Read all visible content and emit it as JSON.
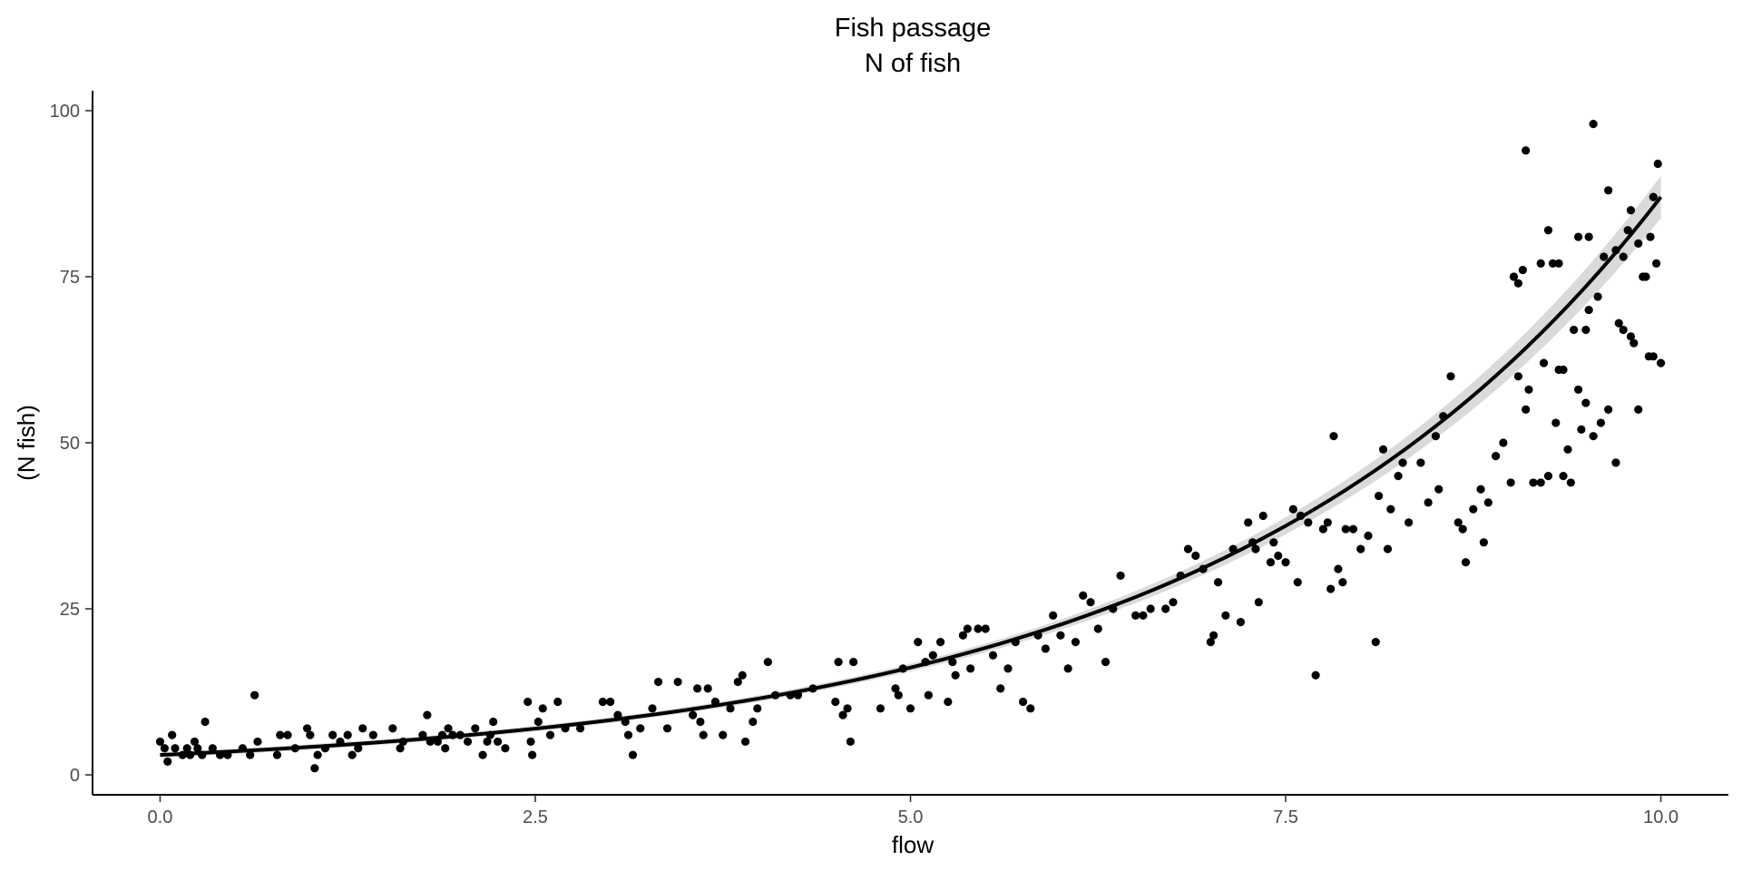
{
  "chart_data": {
    "type": "scatter",
    "title": "Fish passage",
    "subtitle": "N of fish",
    "xlabel": "flow",
    "ylabel": "(N fish)",
    "xlim": [
      -0.45,
      10.45
    ],
    "ylim": [
      -3,
      103
    ],
    "x_ticks": [
      0,
      2.5,
      5,
      7.5,
      10
    ],
    "x_tick_labels": [
      "0.0",
      "2.5",
      "5.0",
      "7.5",
      "10.0"
    ],
    "y_ticks": [
      0,
      25,
      50,
      75,
      100
    ],
    "y_tick_labels": [
      "0",
      "25",
      "50",
      "75",
      "100"
    ],
    "grid": false,
    "point_color": "#000000",
    "fit_line_color": "#000000",
    "ribbon_color": "#d3d3d3",
    "points": [
      [
        0.0,
        5
      ],
      [
        0.03,
        4
      ],
      [
        0.05,
        2
      ],
      [
        0.08,
        6
      ],
      [
        0.1,
        4
      ],
      [
        0.15,
        3
      ],
      [
        0.18,
        4
      ],
      [
        0.2,
        3
      ],
      [
        0.23,
        5
      ],
      [
        0.25,
        4
      ],
      [
        0.28,
        3
      ],
      [
        0.3,
        8
      ],
      [
        0.35,
        4
      ],
      [
        0.4,
        3
      ],
      [
        0.45,
        3
      ],
      [
        0.55,
        4
      ],
      [
        0.6,
        3
      ],
      [
        0.63,
        12
      ],
      [
        0.65,
        5
      ],
      [
        0.78,
        3
      ],
      [
        0.8,
        6
      ],
      [
        0.85,
        6
      ],
      [
        0.9,
        4
      ],
      [
        0.98,
        7
      ],
      [
        1.0,
        6
      ],
      [
        1.03,
        1
      ],
      [
        1.05,
        3
      ],
      [
        1.1,
        4
      ],
      [
        1.15,
        6
      ],
      [
        1.2,
        5
      ],
      [
        1.25,
        6
      ],
      [
        1.28,
        3
      ],
      [
        1.32,
        4
      ],
      [
        1.35,
        7
      ],
      [
        1.42,
        6
      ],
      [
        1.55,
        7
      ],
      [
        1.6,
        4
      ],
      [
        1.62,
        5
      ],
      [
        1.75,
        6
      ],
      [
        1.78,
        9
      ],
      [
        1.8,
        5
      ],
      [
        1.85,
        5
      ],
      [
        1.88,
        6
      ],
      [
        1.9,
        4
      ],
      [
        1.92,
        7
      ],
      [
        1.95,
        6
      ],
      [
        2.0,
        6
      ],
      [
        2.05,
        5
      ],
      [
        2.1,
        7
      ],
      [
        2.15,
        3
      ],
      [
        2.18,
        5
      ],
      [
        2.2,
        6
      ],
      [
        2.22,
        8
      ],
      [
        2.25,
        5
      ],
      [
        2.3,
        4
      ],
      [
        2.45,
        11
      ],
      [
        2.47,
        5
      ],
      [
        2.48,
        3
      ],
      [
        2.52,
        8
      ],
      [
        2.55,
        10
      ],
      [
        2.6,
        6
      ],
      [
        2.65,
        11
      ],
      [
        2.7,
        7
      ],
      [
        2.8,
        7
      ],
      [
        2.95,
        11
      ],
      [
        3.0,
        11
      ],
      [
        3.05,
        9
      ],
      [
        3.1,
        8
      ],
      [
        3.12,
        6
      ],
      [
        3.15,
        3
      ],
      [
        3.2,
        7
      ],
      [
        3.28,
        10
      ],
      [
        3.32,
        14
      ],
      [
        3.38,
        7
      ],
      [
        3.45,
        14
      ],
      [
        3.55,
        9
      ],
      [
        3.58,
        13
      ],
      [
        3.6,
        8
      ],
      [
        3.62,
        6
      ],
      [
        3.65,
        13
      ],
      [
        3.7,
        11
      ],
      [
        3.75,
        6
      ],
      [
        3.8,
        10
      ],
      [
        3.85,
        14
      ],
      [
        3.88,
        15
      ],
      [
        3.9,
        5
      ],
      [
        3.95,
        8
      ],
      [
        3.98,
        10
      ],
      [
        4.05,
        17
      ],
      [
        4.1,
        12
      ],
      [
        4.2,
        12
      ],
      [
        4.25,
        12
      ],
      [
        4.35,
        13
      ],
      [
        4.5,
        11
      ],
      [
        4.52,
        17
      ],
      [
        4.55,
        9
      ],
      [
        4.58,
        10
      ],
      [
        4.6,
        5
      ],
      [
        4.62,
        17
      ],
      [
        4.8,
        10
      ],
      [
        4.9,
        13
      ],
      [
        4.92,
        12
      ],
      [
        4.95,
        16
      ],
      [
        5.0,
        10
      ],
      [
        5.05,
        20
      ],
      [
        5.1,
        17
      ],
      [
        5.12,
        12
      ],
      [
        5.15,
        18
      ],
      [
        5.2,
        20
      ],
      [
        5.25,
        11
      ],
      [
        5.28,
        17
      ],
      [
        5.3,
        15
      ],
      [
        5.35,
        21
      ],
      [
        5.38,
        22
      ],
      [
        5.4,
        16
      ],
      [
        5.45,
        22
      ],
      [
        5.5,
        22
      ],
      [
        5.55,
        18
      ],
      [
        5.6,
        13
      ],
      [
        5.65,
        16
      ],
      [
        5.7,
        20
      ],
      [
        5.75,
        11
      ],
      [
        5.8,
        10
      ],
      [
        5.85,
        21
      ],
      [
        5.9,
        19
      ],
      [
        5.95,
        24
      ],
      [
        6.0,
        21
      ],
      [
        6.05,
        16
      ],
      [
        6.1,
        20
      ],
      [
        6.15,
        27
      ],
      [
        6.2,
        26
      ],
      [
        6.25,
        22
      ],
      [
        6.3,
        17
      ],
      [
        6.35,
        25
      ],
      [
        6.4,
        30
      ],
      [
        6.5,
        24
      ],
      [
        6.55,
        24
      ],
      [
        6.6,
        25
      ],
      [
        6.7,
        25
      ],
      [
        6.75,
        26
      ],
      [
        6.8,
        30
      ],
      [
        6.85,
        34
      ],
      [
        6.9,
        33
      ],
      [
        6.95,
        31
      ],
      [
        7.0,
        20
      ],
      [
        7.02,
        21
      ],
      [
        7.05,
        29
      ],
      [
        7.1,
        24
      ],
      [
        7.15,
        34
      ],
      [
        7.2,
        23
      ],
      [
        7.25,
        38
      ],
      [
        7.28,
        35
      ],
      [
        7.3,
        34
      ],
      [
        7.32,
        26
      ],
      [
        7.35,
        39
      ],
      [
        7.4,
        32
      ],
      [
        7.42,
        35
      ],
      [
        7.45,
        33
      ],
      [
        7.5,
        32
      ],
      [
        7.55,
        40
      ],
      [
        7.58,
        29
      ],
      [
        7.6,
        39
      ],
      [
        7.65,
        38
      ],
      [
        7.7,
        15
      ],
      [
        7.75,
        37
      ],
      [
        7.78,
        38
      ],
      [
        7.8,
        28
      ],
      [
        7.82,
        51
      ],
      [
        7.85,
        31
      ],
      [
        7.88,
        29
      ],
      [
        7.9,
        37
      ],
      [
        7.95,
        37
      ],
      [
        8.0,
        34
      ],
      [
        8.05,
        36
      ],
      [
        8.1,
        20
      ],
      [
        8.12,
        42
      ],
      [
        8.15,
        49
      ],
      [
        8.18,
        34
      ],
      [
        8.2,
        40
      ],
      [
        8.25,
        45
      ],
      [
        8.28,
        47
      ],
      [
        8.32,
        38
      ],
      [
        8.4,
        47
      ],
      [
        8.45,
        41
      ],
      [
        8.5,
        51
      ],
      [
        8.52,
        43
      ],
      [
        8.55,
        54
      ],
      [
        8.6,
        60
      ],
      [
        8.65,
        38
      ],
      [
        8.68,
        37
      ],
      [
        8.7,
        32
      ],
      [
        8.75,
        40
      ],
      [
        8.8,
        43
      ],
      [
        8.82,
        35
      ],
      [
        8.85,
        41
      ],
      [
        8.9,
        48
      ],
      [
        8.95,
        50
      ],
      [
        9.0,
        44
      ],
      [
        9.05,
        60
      ],
      [
        9.1,
        55
      ],
      [
        9.15,
        44
      ],
      [
        9.2,
        44
      ],
      [
        9.25,
        45
      ],
      [
        9.3,
        53
      ],
      [
        9.32,
        61
      ],
      [
        9.35,
        45
      ],
      [
        9.38,
        49
      ],
      [
        9.4,
        44
      ],
      [
        9.45,
        58
      ],
      [
        9.5,
        56
      ],
      [
        9.52,
        70
      ],
      [
        9.55,
        51
      ],
      [
        9.6,
        53
      ],
      [
        9.65,
        55
      ],
      [
        9.7,
        47
      ],
      [
        9.75,
        67
      ],
      [
        9.8,
        66
      ],
      [
        9.82,
        65
      ],
      [
        9.85,
        55
      ],
      [
        9.92,
        63
      ],
      [
        9.95,
        63
      ],
      [
        10.0,
        62
      ],
      [
        9.02,
        75
      ],
      [
        9.05,
        74
      ],
      [
        9.08,
        76
      ],
      [
        9.1,
        94
      ],
      [
        9.12,
        58
      ],
      [
        9.2,
        77
      ],
      [
        9.22,
        62
      ],
      [
        9.25,
        82
      ],
      [
        9.28,
        77
      ],
      [
        9.32,
        77
      ],
      [
        9.35,
        61
      ],
      [
        9.42,
        67
      ],
      [
        9.45,
        81
      ],
      [
        9.47,
        52
      ],
      [
        9.5,
        67
      ],
      [
        9.52,
        81
      ],
      [
        9.55,
        98
      ],
      [
        9.58,
        72
      ],
      [
        9.62,
        78
      ],
      [
        9.65,
        88
      ],
      [
        9.7,
        79
      ],
      [
        9.72,
        68
      ],
      [
        9.75,
        78
      ],
      [
        9.78,
        82
      ],
      [
        9.8,
        85
      ],
      [
        9.85,
        80
      ],
      [
        9.88,
        75
      ],
      [
        9.9,
        75
      ],
      [
        9.93,
        81
      ],
      [
        9.95,
        87
      ],
      [
        9.97,
        77
      ],
      [
        9.98,
        92
      ]
    ],
    "fit": {
      "label": "",
      "x": [
        0,
        10
      ],
      "y": [
        3.0,
        87.0
      ]
    }
  }
}
